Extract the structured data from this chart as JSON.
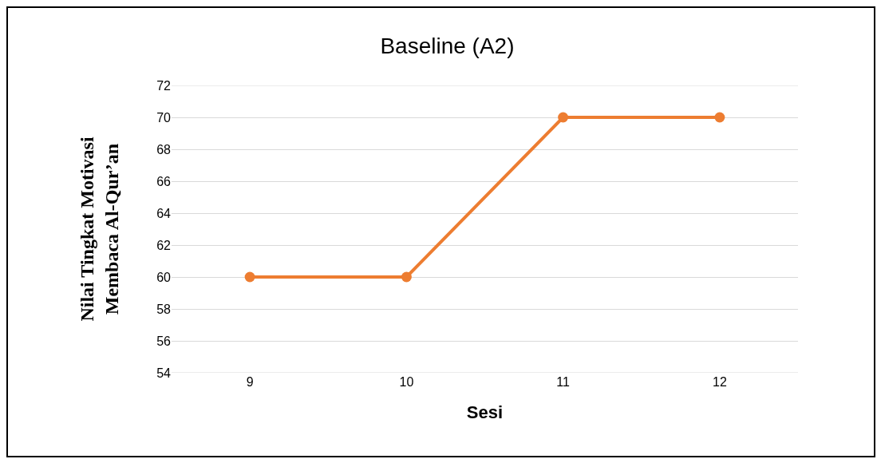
{
  "chart_data": {
    "type": "line",
    "title": "Baseline (A2)",
    "xlabel": "Sesi",
    "ylabel": "Nilai Tingkat Motivasi\nMembaca Al-Qur’an",
    "categories": [
      "9",
      "10",
      "11",
      "12"
    ],
    "series": [
      {
        "color": "#ed7d31",
        "values": [
          60,
          60,
          70,
          70
        ]
      }
    ],
    "ylim": [
      54,
      72
    ],
    "yticks": [
      54,
      56,
      58,
      60,
      62,
      64,
      66,
      68,
      70,
      72
    ],
    "grid": "y",
    "marker": "circle",
    "line_style": "solid"
  }
}
